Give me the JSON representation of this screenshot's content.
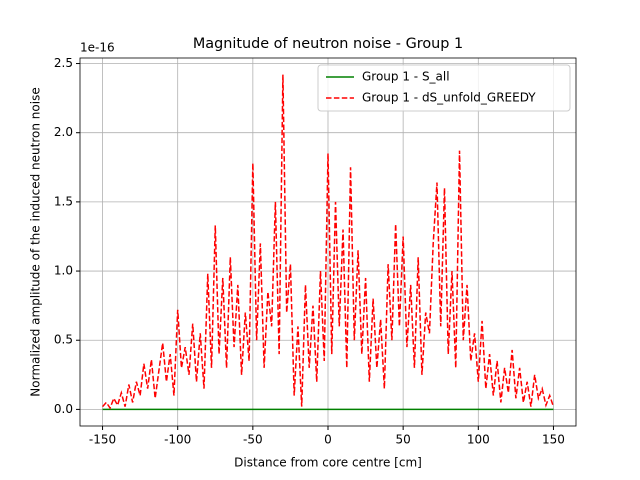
{
  "chart_data": {
    "type": "line",
    "title": "Magnitude of neutron noise - Group 1",
    "x_label": "Distance from core centre [cm]",
    "y_label": "Normalized amplitude of the induced neutron noise",
    "y_offset_label": "1e-16",
    "xlim": [
      -165,
      165
    ],
    "ylim": [
      -0.12,
      2.54
    ],
    "xticks": [
      -150,
      -100,
      -50,
      0,
      50,
      100,
      150
    ],
    "yticks": [
      {
        "value": 0,
        "label": "0.0"
      },
      {
        "value": 0.5,
        "label": "0.5"
      },
      {
        "value": 1,
        "label": "1.0"
      },
      {
        "value": 1.5,
        "label": "1.5"
      },
      {
        "value": 2,
        "label": "2.0"
      },
      {
        "value": 2.5,
        "label": "2.5"
      }
    ],
    "grid": true,
    "legend": "upper right",
    "series": [
      {
        "name": "Group 1 - S_all",
        "color": "#008000",
        "dash": "solid",
        "x": [
          -150,
          150
        ],
        "values": [
          0,
          0
        ]
      },
      {
        "name": "Group 1 - dS_unfold_GREEDY",
        "color": "#ff0000",
        "dash": "dashed",
        "x": [
          -150,
          -147.5,
          -145,
          -142.5,
          -140,
          -137.5,
          -135,
          -132.5,
          -130,
          -127.5,
          -125,
          -122.5,
          -120,
          -117.5,
          -115,
          -112.5,
          -110,
          -107.5,
          -105,
          -102.5,
          -100,
          -97.5,
          -95,
          -92.5,
          -90,
          -87.5,
          -85,
          -82.5,
          -80,
          -77.5,
          -75,
          -72.5,
          -70,
          -67.5,
          -65,
          -62.5,
          -60,
          -57.5,
          -55,
          -52.5,
          -50,
          -47.5,
          -45,
          -42.5,
          -40,
          -37.5,
          -35,
          -32.5,
          -30,
          -27.5,
          -25,
          -22.5,
          -20,
          -17.5,
          -15,
          -12.5,
          -10,
          -7.5,
          -5,
          -2.5,
          0,
          2.5,
          5,
          7.5,
          10,
          12.5,
          15,
          17.5,
          20,
          22.5,
          25,
          27.5,
          30,
          32.5,
          35,
          37.5,
          40,
          42.5,
          45,
          47.5,
          50,
          52.5,
          55,
          57.5,
          60,
          62.5,
          65,
          67.5,
          70,
          72.5,
          75,
          77.5,
          80,
          82.5,
          85,
          87.5,
          90,
          92.5,
          95,
          97.5,
          100,
          102.5,
          105,
          107.5,
          110,
          112.5,
          115,
          117.5,
          120,
          122.5,
          125,
          127.5,
          130,
          132.5,
          135,
          137.5,
          140,
          142.5,
          145,
          147.5,
          150
        ],
        "values": [
          0.02,
          0.05,
          0.01,
          0.08,
          0.03,
          0.12,
          0.02,
          0.18,
          0.05,
          0.2,
          0.1,
          0.33,
          0.15,
          0.36,
          0.08,
          0.28,
          0.48,
          0.2,
          0.4,
          0.1,
          0.72,
          0.3,
          0.45,
          0.25,
          0.62,
          0.2,
          0.55,
          0.15,
          0.98,
          0.3,
          1.33,
          0.4,
          0.95,
          0.3,
          1.1,
          0.45,
          0.9,
          0.25,
          0.7,
          0.35,
          1.78,
          0.5,
          1.2,
          0.3,
          0.85,
          0.6,
          1.5,
          0.4,
          2.42,
          0.7,
          1.05,
          0.1,
          0.6,
          0.02,
          0.9,
          0.3,
          0.75,
          0.2,
          1.0,
          0.35,
          1.85,
          0.4,
          1.5,
          0.6,
          1.3,
          0.3,
          1.75,
          0.5,
          1.15,
          0.4,
          0.95,
          0.2,
          0.8,
          0.3,
          0.65,
          0.15,
          1.05,
          0.5,
          1.34,
          0.6,
          1.25,
          0.45,
          0.9,
          0.3,
          1.1,
          0.25,
          0.7,
          0.55,
          1.2,
          1.64,
          0.6,
          1.6,
          0.4,
          1.0,
          0.3,
          1.87,
          0.5,
          0.9,
          0.35,
          0.55,
          0.2,
          0.64,
          0.15,
          0.4,
          0.1,
          0.35,
          0.05,
          0.3,
          0.12,
          0.43,
          0.08,
          0.3,
          0.05,
          0.2,
          0.02,
          0.25,
          0.08,
          0.15,
          0.03,
          0.1,
          0.02
        ]
      }
    ]
  }
}
